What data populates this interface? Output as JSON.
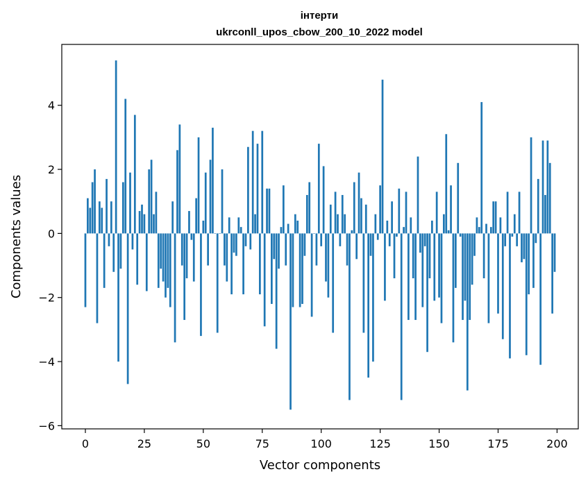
{
  "chart_data": {
    "type": "bar",
    "title": [
      "інтерти",
      "ukrconll_upos_cbow_200_10_2022 model"
    ],
    "xlabel": "Vector components",
    "ylabel": "Components values",
    "xlim": [
      -10,
      209
    ],
    "ylim": [
      -6.1,
      5.9
    ],
    "xticks": [
      0,
      25,
      50,
      75,
      100,
      125,
      150,
      175,
      200
    ],
    "yticks": [
      -6,
      -4,
      -2,
      0,
      2,
      4
    ],
    "bar_color": "#1f77b4",
    "grid": false,
    "values": [
      -2.3,
      1.1,
      0.8,
      1.6,
      2.0,
      -2.8,
      1.0,
      0.8,
      -1.7,
      1.7,
      -0.4,
      1.0,
      -1.2,
      5.4,
      -4.0,
      -1.1,
      1.6,
      4.2,
      -4.7,
      1.9,
      -0.5,
      3.7,
      -1.6,
      0.7,
      0.9,
      0.6,
      -1.8,
      2.0,
      2.3,
      0.6,
      1.3,
      -1.7,
      -1.1,
      -1.5,
      -2.0,
      -1.7,
      -2.3,
      1.0,
      -3.4,
      2.6,
      3.4,
      -1.0,
      -2.7,
      -1.4,
      0.7,
      -0.2,
      -1.5,
      1.1,
      3.0,
      -3.2,
      0.4,
      1.9,
      -1.0,
      2.3,
      3.3,
      0.0,
      -3.1,
      0.0,
      2.0,
      -1.0,
      -1.5,
      0.5,
      -1.9,
      -0.6,
      -0.7,
      0.5,
      0.2,
      -1.9,
      -0.4,
      2.7,
      -0.5,
      3.2,
      0.6,
      2.8,
      -1.9,
      3.2,
      -2.9,
      1.4,
      1.4,
      -2.2,
      -0.8,
      -3.6,
      -1.1,
      0.2,
      1.5,
      -1.0,
      0.3,
      -5.5,
      -2.3,
      0.6,
      0.4,
      -2.3,
      -2.2,
      -0.7,
      1.2,
      1.6,
      -2.6,
      0.0,
      -1.0,
      2.8,
      -0.4,
      2.1,
      -1.5,
      -2.0,
      0.9,
      -3.1,
      1.3,
      0.6,
      -0.4,
      1.2,
      0.6,
      -1.0,
      -5.2,
      0.1,
      1.6,
      -0.8,
      1.9,
      1.1,
      -3.1,
      0.9,
      -4.5,
      -0.7,
      -4.0,
      0.6,
      -0.2,
      1.5,
      4.8,
      -2.1,
      0.4,
      -0.4,
      1.0,
      -1.4,
      -0.1,
      1.4,
      -5.2,
      0.2,
      1.3,
      -2.7,
      0.5,
      -1.4,
      -2.7,
      2.4,
      -0.6,
      -2.3,
      -0.4,
      -3.7,
      -1.4,
      0.4,
      -2.1,
      1.3,
      -2.0,
      -2.8,
      0.6,
      3.1,
      0.1,
      1.5,
      -3.4,
      -1.7,
      2.2,
      -0.1,
      -2.7,
      -2.1,
      -4.9,
      -2.7,
      -1.6,
      -0.7,
      0.5,
      0.2,
      4.1,
      -1.4,
      0.3,
      -2.8,
      0.2,
      1.0,
      1.0,
      -2.5,
      0.5,
      -3.3,
      -0.4,
      1.3,
      -3.9,
      -0.1,
      0.6,
      -0.4,
      1.3,
      -0.9,
      -0.8,
      -3.8,
      -1.9,
      3.0,
      -1.7,
      -0.3,
      1.7,
      -4.1,
      2.9,
      1.2,
      2.9,
      2.2,
      -2.5,
      -1.2
    ]
  }
}
